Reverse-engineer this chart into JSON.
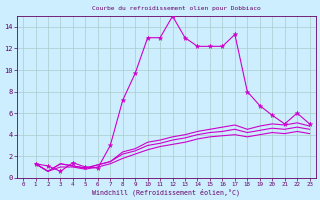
{
  "title": "Courbe du refroidissement olien pour Dobbiaco",
  "xlabel": "Windchill (Refroidissement éolien,°C)",
  "background_color": "#cceeff",
  "grid_color": "#aacccc",
  "line_color": "#cc00cc",
  "marker_color": "#cc00cc",
  "text_color": "#660066",
  "xlim": [
    -0.5,
    23.5
  ],
  "ylim": [
    0,
    15
  ],
  "xticks": [
    0,
    1,
    2,
    3,
    4,
    5,
    6,
    7,
    8,
    9,
    10,
    11,
    12,
    13,
    14,
    15,
    16,
    17,
    18,
    19,
    20,
    21,
    22,
    23
  ],
  "yticks": [
    0,
    2,
    4,
    6,
    8,
    10,
    12,
    14
  ],
  "curves": [
    {
      "x": [
        1,
        2,
        3,
        4,
        5,
        6,
        7,
        8,
        9,
        10,
        11,
        12,
        13,
        14,
        15,
        16,
        17,
        18,
        19,
        20,
        21,
        22,
        23
      ],
      "y": [
        1.3,
        1.1,
        0.6,
        1.4,
        1.0,
        0.9,
        3.0,
        7.2,
        9.7,
        13.0,
        13.0,
        15.0,
        13.0,
        12.2,
        12.2,
        12.2,
        13.3,
        8.0,
        6.7,
        5.8,
        5.0,
        6.0,
        5.0
      ],
      "marker": true
    },
    {
      "x": [
        1,
        2,
        3,
        4,
        5,
        6,
        7,
        8,
        9,
        10,
        11,
        12,
        13,
        14,
        15,
        16,
        17,
        18,
        19,
        20,
        21,
        22,
        23
      ],
      "y": [
        1.3,
        0.6,
        1.3,
        1.1,
        0.9,
        1.2,
        1.5,
        2.4,
        2.7,
        3.3,
        3.5,
        3.8,
        4.0,
        4.3,
        4.5,
        4.7,
        4.9,
        4.5,
        4.8,
        5.0,
        4.9,
        5.1,
        4.8
      ],
      "marker": false
    },
    {
      "x": [
        1,
        2,
        3,
        4,
        5,
        6,
        7,
        8,
        9,
        10,
        11,
        12,
        13,
        14,
        15,
        16,
        17,
        18,
        19,
        20,
        21,
        22,
        23
      ],
      "y": [
        1.3,
        0.6,
        1.3,
        1.1,
        0.9,
        1.2,
        1.5,
        2.2,
        2.5,
        3.0,
        3.2,
        3.5,
        3.7,
        4.0,
        4.2,
        4.3,
        4.5,
        4.2,
        4.4,
        4.6,
        4.5,
        4.7,
        4.5
      ],
      "marker": false
    },
    {
      "x": [
        1,
        2,
        3,
        4,
        5,
        6,
        7,
        8,
        9,
        10,
        11,
        12,
        13,
        14,
        15,
        16,
        17,
        18,
        19,
        20,
        21,
        22,
        23
      ],
      "y": [
        1.3,
        0.6,
        1.0,
        1.0,
        0.8,
        1.0,
        1.3,
        1.8,
        2.2,
        2.6,
        2.9,
        3.1,
        3.3,
        3.6,
        3.8,
        3.9,
        4.0,
        3.8,
        4.0,
        4.2,
        4.1,
        4.3,
        4.1
      ],
      "marker": false
    }
  ]
}
